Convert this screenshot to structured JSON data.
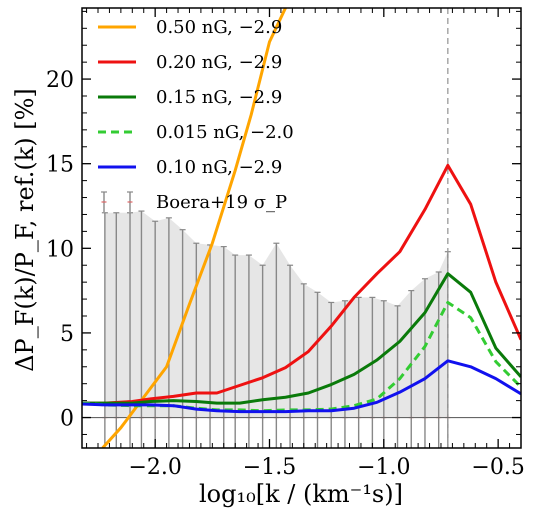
{
  "chart_data": {
    "type": "line",
    "xlabel": "log₁₀[k / (km⁻¹s)]",
    "ylabel": "ΔP_F(k)/P_F, ref.(k) [%]",
    "xlim": [
      -2.32,
      -0.4
    ],
    "ylim": [
      -1.8,
      24.2
    ],
    "x_ticks": [
      -2.0,
      -1.5,
      -1.0,
      -0.5
    ],
    "x_tick_labels": [
      "−2.0",
      "−1.5",
      "−1.0",
      "−0.5"
    ],
    "y_ticks": [
      0,
      5,
      10,
      15,
      20
    ],
    "y_tick_labels": [
      "0",
      "5",
      "10",
      "15",
      "20"
    ],
    "vertical_dashed_line_x": -0.72,
    "zero_line_y": 0,
    "legend_position": "top-left",
    "series": [
      {
        "name": "0.50 nG, −2.9",
        "color": "#ffa500",
        "dash": "solid",
        "x": [
          -2.23,
          -2.15,
          -2.05,
          -1.95,
          -1.85,
          -1.75,
          -1.65,
          -1.58,
          -1.5,
          -1.43
        ],
        "y": [
          -1.8,
          -0.6,
          1.2,
          3.0,
          6.7,
          10.3,
          14.6,
          17.9,
          22.2,
          24.2
        ]
      },
      {
        "name": "0.20 nG, −2.9",
        "color": "#ee1111",
        "dash": "solid",
        "x": [
          -2.32,
          -2.22,
          -2.1,
          -2.02,
          -1.92,
          -1.82,
          -1.73,
          -1.63,
          -1.53,
          -1.43,
          -1.33,
          -1.23,
          -1.13,
          -1.03,
          -0.93,
          -0.82,
          -0.72,
          -0.62,
          -0.51,
          -0.4
        ],
        "y": [
          0.85,
          0.85,
          0.95,
          1.1,
          1.25,
          1.45,
          1.45,
          1.9,
          2.35,
          2.95,
          3.9,
          5.4,
          7.1,
          8.5,
          9.8,
          12.3,
          14.9,
          12.6,
          8.0,
          4.6
        ]
      },
      {
        "name": "0.15 nG, −2.9",
        "color": "#0a7a0a",
        "dash": "solid",
        "x": [
          -2.32,
          -2.22,
          -2.1,
          -2.02,
          -1.92,
          -1.82,
          -1.73,
          -1.63,
          -1.53,
          -1.43,
          -1.33,
          -1.23,
          -1.13,
          -1.03,
          -0.93,
          -0.82,
          -0.72,
          -0.62,
          -0.51,
          -0.4
        ],
        "y": [
          0.85,
          0.85,
          0.85,
          0.95,
          1.0,
          0.95,
          0.85,
          0.85,
          1.05,
          1.2,
          1.45,
          1.95,
          2.55,
          3.4,
          4.5,
          6.2,
          8.5,
          7.4,
          4.1,
          2.4
        ]
      },
      {
        "name": "0.015 nG, −2.0",
        "color": "#33cc33",
        "dash": "dashed",
        "x": [
          -2.32,
          -2.22,
          -2.1,
          -2.02,
          -1.92,
          -1.82,
          -1.73,
          -1.63,
          -1.53,
          -1.43,
          -1.33,
          -1.23,
          -1.13,
          -1.03,
          -0.93,
          -0.82,
          -0.72,
          -0.62,
          -0.51,
          -0.4
        ],
        "y": [
          0.85,
          0.75,
          0.7,
          0.7,
          0.7,
          0.55,
          0.45,
          0.45,
          0.4,
          0.45,
          0.45,
          0.5,
          0.7,
          1.1,
          2.3,
          4.2,
          6.8,
          5.9,
          3.3,
          1.8
        ]
      },
      {
        "name": "0.10 nG, −2.9",
        "color": "#1111ee",
        "dash": "solid",
        "x": [
          -2.32,
          -2.22,
          -2.1,
          -2.02,
          -1.92,
          -1.82,
          -1.73,
          -1.63,
          -1.53,
          -1.43,
          -1.33,
          -1.23,
          -1.13,
          -1.03,
          -0.93,
          -0.82,
          -0.72,
          -0.62,
          -0.51,
          -0.4
        ],
        "y": [
          0.8,
          0.75,
          0.75,
          0.75,
          0.7,
          0.5,
          0.4,
          0.35,
          0.35,
          0.35,
          0.4,
          0.4,
          0.55,
          0.9,
          1.5,
          2.3,
          3.35,
          3.0,
          2.3,
          1.4
        ]
      }
    ],
    "error_band": {
      "name": "Boera+19 σ_P",
      "fill_color": "#e6e6e6",
      "bar_color": "#888888",
      "marker_color": "#dd6666",
      "x": [
        -2.22,
        -2.17,
        -2.11,
        -2.06,
        -2.0,
        -1.94,
        -1.88,
        -1.82,
        -1.76,
        -1.7,
        -1.65,
        -1.59,
        -1.53,
        -1.47,
        -1.41,
        -1.35,
        -1.29,
        -1.23,
        -1.17,
        -1.11,
        -1.05,
        -1.0,
        -0.94,
        -0.88,
        -0.82,
        -0.76,
        -0.72
      ],
      "sigma": [
        12.1,
        12.1,
        12.1,
        12.2,
        11.6,
        11.8,
        11.1,
        10.3,
        10.2,
        10.1,
        9.6,
        9.6,
        9.0,
        10.3,
        9.0,
        7.9,
        7.4,
        6.8,
        6.9,
        7.1,
        7.1,
        6.9,
        6.6,
        7.5,
        8.2,
        8.6,
        9.8
      ]
    }
  }
}
